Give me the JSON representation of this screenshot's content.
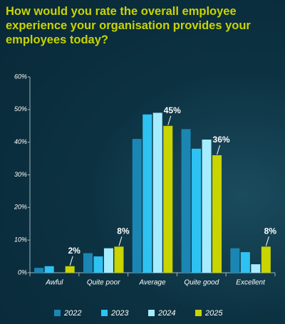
{
  "chart_data": {
    "type": "bar",
    "title": "How would you rate the overall employee experience your organisation provides your employees today?",
    "categories": [
      "Awful",
      "Quite poor",
      "Average",
      "Quite good",
      "Excellent"
    ],
    "series": [
      {
        "name": "2022",
        "color": "#1b86b3",
        "values": [
          1.5,
          6,
          41,
          44,
          7.5
        ]
      },
      {
        "name": "2023",
        "color": "#2ec2f2",
        "values": [
          2,
          5,
          48.5,
          38,
          6.3
        ]
      },
      {
        "name": "2024",
        "color": "#a6ecff",
        "values": [
          0,
          7.5,
          49,
          40.8,
          2.6
        ]
      },
      {
        "name": "2025",
        "color": "#c9d400",
        "values": [
          2,
          8,
          45,
          36,
          8
        ],
        "value_labels": [
          "2%",
          "8%",
          "45%",
          "36%",
          "8%"
        ]
      }
    ],
    "ylim": [
      0,
      60
    ],
    "yticks": [
      {
        "value": 0,
        "label": "0%"
      },
      {
        "value": 10,
        "label": "10%"
      },
      {
        "value": 20,
        "label": "20%"
      },
      {
        "value": 30,
        "label": "30%"
      },
      {
        "value": 40,
        "label": "40%"
      },
      {
        "value": 50,
        "label": "50%"
      },
      {
        "value": 60,
        "label": "60%"
      }
    ],
    "legend": "bottom"
  }
}
